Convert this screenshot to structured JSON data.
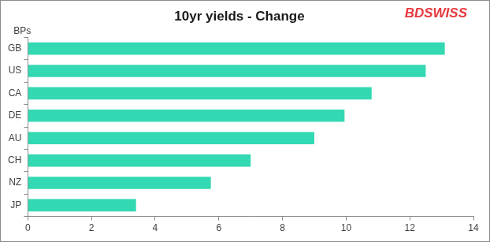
{
  "chart_data": {
    "type": "bar",
    "orientation": "horizontal",
    "title": "10yr yields - Change",
    "xlabel": "BPs",
    "annotations": [
      "BDSWISS"
    ],
    "categories": [
      "GB",
      "US",
      "CA",
      "DE",
      "AU",
      "CH",
      "NZ",
      "JP"
    ],
    "values": [
      13.1,
      12.5,
      10.8,
      9.95,
      9.0,
      7.0,
      5.75,
      3.4
    ],
    "color": "#33d9b2",
    "xlim": [
      0,
      14
    ],
    "xticks": [
      0,
      2,
      4,
      6,
      8,
      10,
      12,
      14
    ],
    "grid": false
  }
}
